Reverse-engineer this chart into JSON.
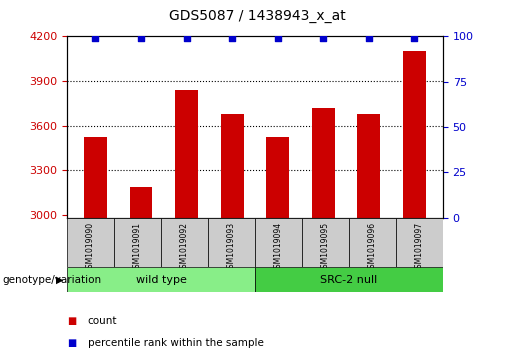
{
  "title": "GDS5087 / 1438943_x_at",
  "samples": [
    "GSM1019090",
    "GSM1019091",
    "GSM1019092",
    "GSM1019093",
    "GSM1019094",
    "GSM1019095",
    "GSM1019096",
    "GSM1019097"
  ],
  "counts": [
    3520,
    3190,
    3840,
    3680,
    3520,
    3720,
    3680,
    4100
  ],
  "percentile_value": 99,
  "ylim_left": [
    2980,
    4200
  ],
  "ylim_right": [
    0,
    100
  ],
  "yticks_left": [
    3000,
    3300,
    3600,
    3900,
    4200
  ],
  "yticks_right": [
    0,
    25,
    50,
    75,
    100
  ],
  "groups": [
    {
      "label": "wild type",
      "indices": [
        0,
        1,
        2,
        3
      ],
      "color": "#88ee88"
    },
    {
      "label": "SRC-2 null",
      "indices": [
        4,
        5,
        6,
        7
      ],
      "color": "#44cc44"
    }
  ],
  "bar_color": "#cc0000",
  "dot_color": "#0000cc",
  "bar_width": 0.5,
  "tick_area_color": "#cccccc",
  "legend_count_color": "#cc0000",
  "legend_pct_color": "#0000cc",
  "xlabel_label": "genotype/variation",
  "left_ylabel_color": "#cc0000",
  "right_ylabel_color": "#0000cc"
}
